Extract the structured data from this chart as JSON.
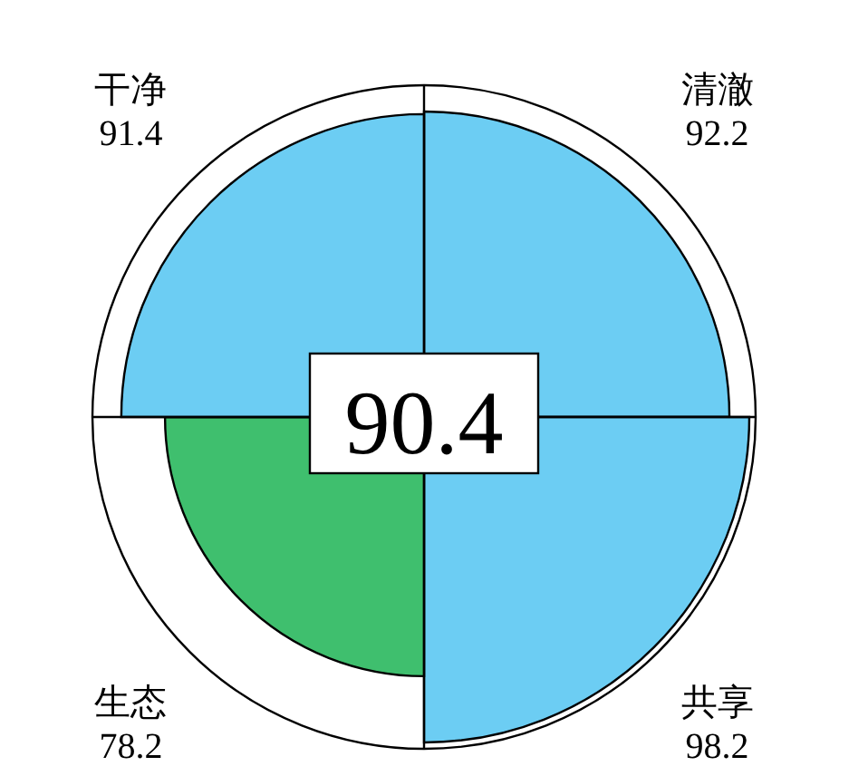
{
  "chart_data": {
    "type": "other",
    "categories": [
      "清澈",
      "共享",
      "生态",
      "干净"
    ],
    "values": [
      92.2,
      98.2,
      78.2,
      91.4
    ],
    "colors": [
      "#6ccdf3",
      "#6ccdf3",
      "#3fbf6e",
      "#6ccdf3"
    ],
    "data_labels": true,
    "annotations": [
      "90.4"
    ]
  }
}
